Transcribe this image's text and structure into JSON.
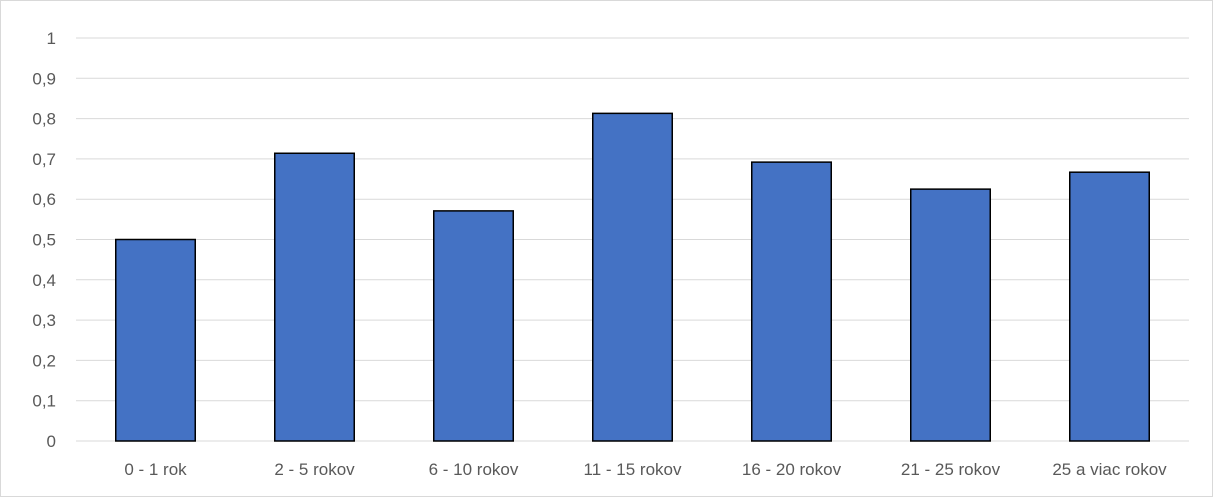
{
  "chart_data": {
    "type": "bar",
    "title": "",
    "xlabel": "",
    "ylabel": "",
    "categories": [
      "0 - 1 rok",
      "2 - 5 rokov",
      "6 - 10 rokov",
      "11 - 15 rokov",
      "16 - 20 rokov",
      "21 - 25 rokov",
      "25 a viac rokov"
    ],
    "values": [
      0.5,
      0.714,
      0.571,
      0.813,
      0.692,
      0.625,
      0.667
    ],
    "ylim": [
      0,
      1
    ],
    "yticks": [
      0,
      0.1,
      0.2,
      0.3,
      0.4,
      0.5,
      0.6,
      0.7,
      0.8,
      0.9,
      1
    ],
    "ytick_labels": [
      "0",
      "0,1",
      "0,2",
      "0,3",
      "0,4",
      "0,5",
      "0,6",
      "0,7",
      "0,8",
      "0,9",
      "1"
    ],
    "grid": true,
    "legend": "none",
    "colors": {
      "bar_fill": "#4472c4",
      "bar_stroke": "#000000",
      "gridline": "#d9d9d9",
      "axis_line": "#d9d9d9",
      "tick_text": "#595959"
    }
  }
}
